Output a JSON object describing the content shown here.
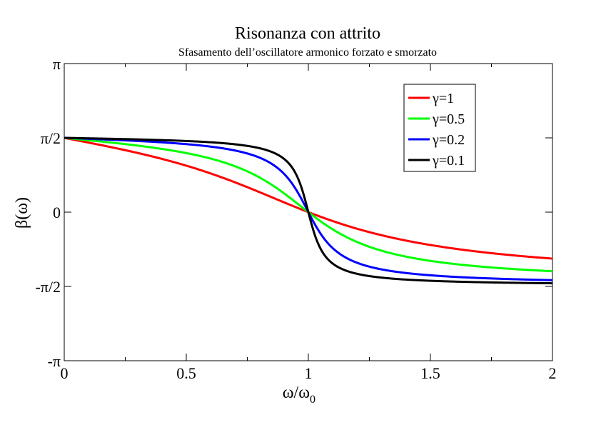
{
  "chart_data": {
    "type": "line",
    "title": "Risonanza con attrito",
    "subtitle": "Sfasamento dell’oscillatore armonico forzato e smorzato",
    "xlabel_main": "ω/ω",
    "xlabel_sub": "0",
    "ylabel": "β(ω)",
    "xlim": [
      0,
      2
    ],
    "ylim": [
      -3.14159,
      3.14159
    ],
    "x_ticks": [
      {
        "value": 0,
        "label": "0"
      },
      {
        "value": 0.5,
        "label": "0.5"
      },
      {
        "value": 1,
        "label": "1"
      },
      {
        "value": 1.5,
        "label": "1.5"
      },
      {
        "value": 2,
        "label": "2"
      }
    ],
    "y_ticks": [
      {
        "value": -3.14159,
        "label": "-π"
      },
      {
        "value": -1.5708,
        "label": "-π/2"
      },
      {
        "value": 0,
        "label": "0"
      },
      {
        "value": 1.5708,
        "label": "π/2"
      },
      {
        "value": 3.14159,
        "label": "π"
      }
    ],
    "legend_position": "top-right",
    "grid": false,
    "series": [
      {
        "name": "γ=1",
        "gamma": 1,
        "color": "#ff0000"
      },
      {
        "name": "γ=0.5",
        "gamma": 0.5,
        "color": "#00ff00"
      },
      {
        "name": "γ=0.2",
        "gamma": 0.2,
        "color": "#0000ff"
      },
      {
        "name": "γ=0.1",
        "gamma": 0.1,
        "color": "#000000"
      }
    ],
    "function": "β(ω) = arctan(γω/(ω0² − ω²)), sampled",
    "x": [
      0,
      0.1,
      0.2,
      0.3,
      0.4,
      0.5,
      0.6,
      0.7,
      0.8,
      0.9,
      0.95,
      1.0,
      1.05,
      1.1,
      1.2,
      1.3,
      1.4,
      1.5,
      1.6,
      1.7,
      1.8,
      1.9,
      2.0
    ]
  }
}
